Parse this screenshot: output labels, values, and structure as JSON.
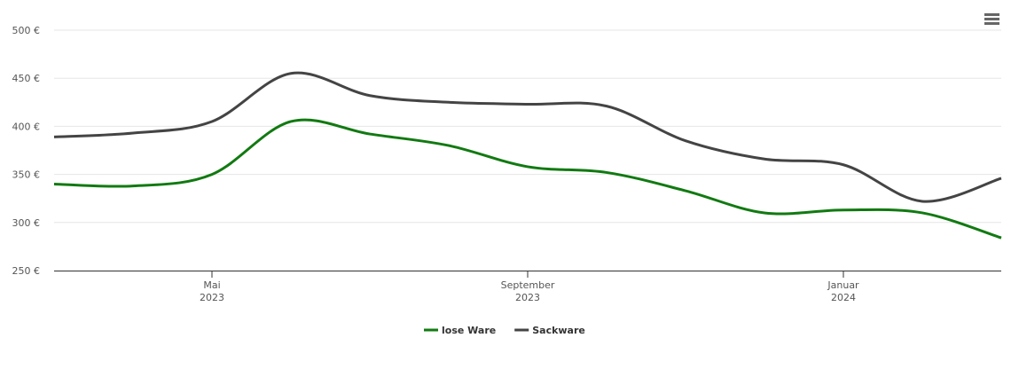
{
  "chart_data": {
    "type": "line",
    "x": [
      "2023-03",
      "2023-04",
      "2023-05",
      "2023-06",
      "2023-07",
      "2023-08",
      "2023-09",
      "2023-10",
      "2023-11",
      "2023-12",
      "2024-01",
      "2024-02",
      "2024-03"
    ],
    "xlim": [
      "2023-03",
      "2024-03"
    ],
    "xticks": [
      {
        "value": "2023-05",
        "label": [
          "Mai",
          "2023"
        ]
      },
      {
        "value": "2023-09",
        "label": [
          "September",
          "2023"
        ]
      },
      {
        "value": "2024-01",
        "label": [
          "Januar",
          "2024"
        ]
      }
    ],
    "ylim": [
      250,
      500
    ],
    "yticks": [
      {
        "value": 250,
        "label": "250 €"
      },
      {
        "value": 300,
        "label": "300 €"
      },
      {
        "value": 350,
        "label": "350 €"
      },
      {
        "value": 400,
        "label": "400 €"
      },
      {
        "value": 450,
        "label": "450 €"
      },
      {
        "value": 500,
        "label": "500 €"
      }
    ],
    "grid": true,
    "legend": "bottom",
    "series": [
      {
        "name": "lose Ware",
        "color": "#117a11",
        "values": [
          340,
          338,
          350,
          405,
          392,
          380,
          358,
          352,
          333,
          310,
          313,
          310,
          284
        ]
      },
      {
        "name": "Sackware",
        "color": "#444444",
        "values": [
          389,
          393,
          405,
          455,
          432,
          425,
          423,
          421,
          385,
          366,
          360,
          322,
          346
        ]
      }
    ]
  }
}
